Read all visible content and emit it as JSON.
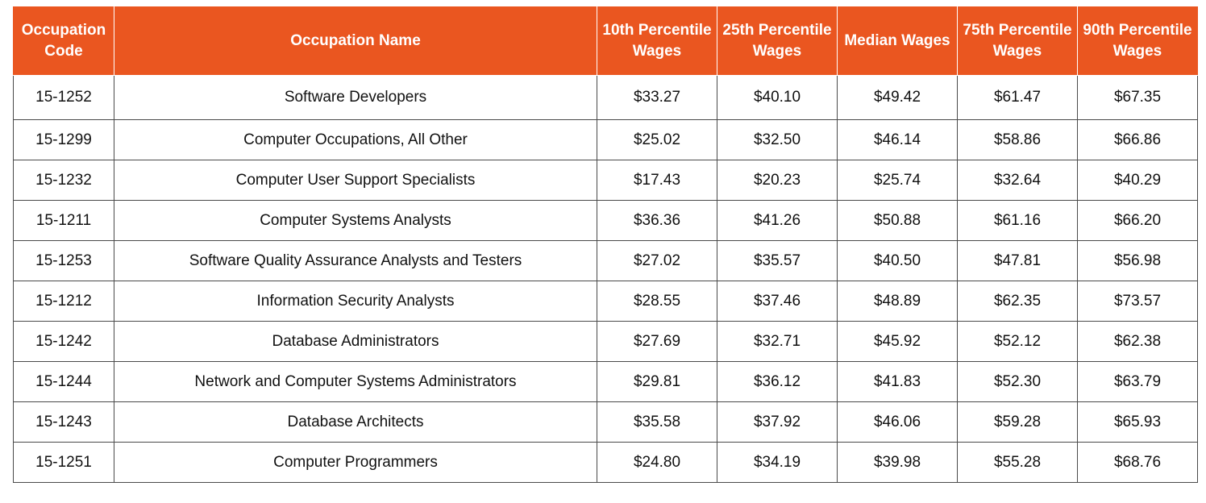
{
  "chart_data": {
    "type": "table",
    "columns": [
      "Occupation Code",
      "Occupation Name",
      "10th Percentile Wages",
      "25th Percentile Wages",
      "Median Wages",
      "75th Percentile Wages",
      "90th Percentile Wages"
    ],
    "rows": [
      [
        "15-1252",
        "Software Developers",
        "$33.27",
        "$40.10",
        "$49.42",
        "$61.47",
        "$67.35"
      ],
      [
        "15-1299",
        "Computer Occupations, All Other",
        "$25.02",
        "$32.50",
        "$46.14",
        "$58.86",
        "$66.86"
      ],
      [
        "15-1232",
        "Computer User Support Specialists",
        "$17.43",
        "$20.23",
        "$25.74",
        "$32.64",
        "$40.29"
      ],
      [
        "15-1211",
        "Computer Systems Analysts",
        "$36.36",
        "$41.26",
        "$50.88",
        "$61.16",
        "$66.20"
      ],
      [
        "15-1253",
        "Software Quality Assurance Analysts and Testers",
        "$27.02",
        "$35.57",
        "$40.50",
        "$47.81",
        "$56.98"
      ],
      [
        "15-1212",
        "Information Security Analysts",
        "$28.55",
        "$37.46",
        "$48.89",
        "$62.35",
        "$73.57"
      ],
      [
        "15-1242",
        "Database Administrators",
        "$27.69",
        "$32.71",
        "$45.92",
        "$52.12",
        "$62.38"
      ],
      [
        "15-1244",
        "Network and Computer Systems Administrators",
        "$29.81",
        "$36.12",
        "$41.83",
        "$52.30",
        "$63.79"
      ],
      [
        "15-1243",
        "Database Architects",
        "$35.58",
        "$37.92",
        "$46.06",
        "$59.28",
        "$65.93"
      ],
      [
        "15-1251",
        "Computer Programmers",
        "$24.80",
        "$34.19",
        "$39.98",
        "$55.28",
        "$68.76"
      ]
    ]
  },
  "style": {
    "header_bg": "#ea5620",
    "header_text": "#ffffff",
    "border": "#4a4a4a"
  }
}
